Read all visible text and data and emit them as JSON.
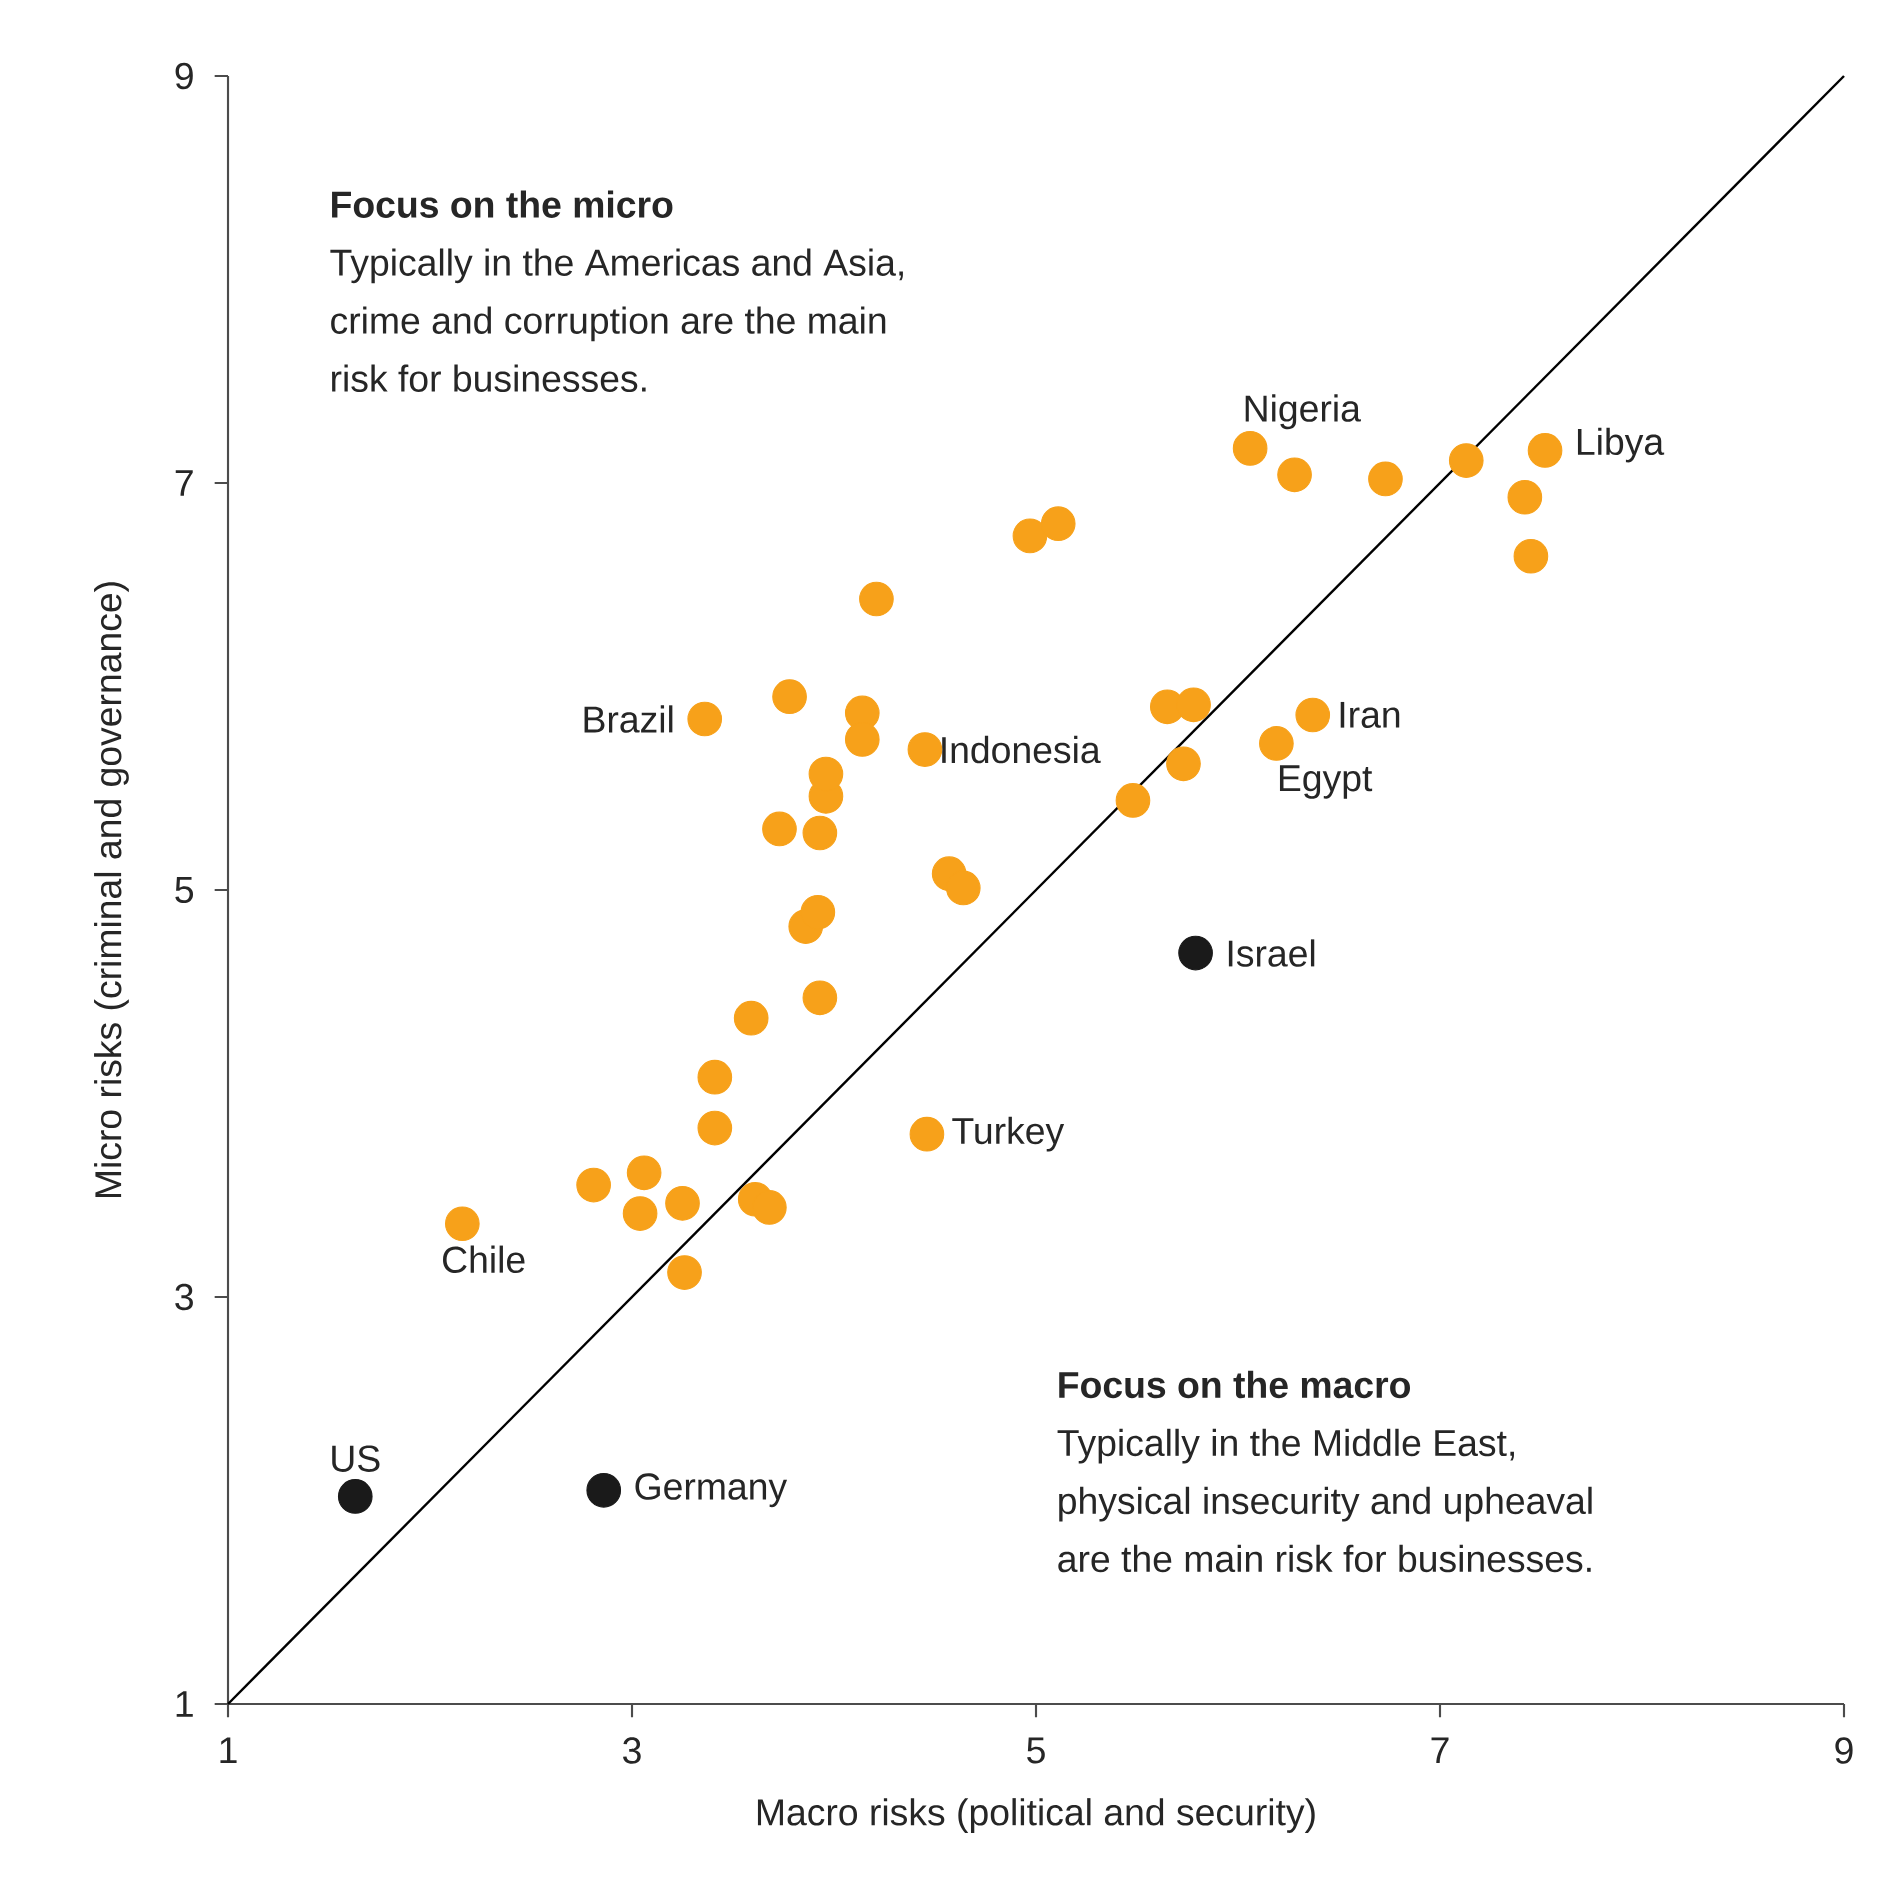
{
  "chart_data": {
    "type": "scatter",
    "xlabel": "Macro risks (political and security)",
    "ylabel": "Micro risks (criminal and governance)",
    "xlim": [
      1,
      9
    ],
    "ylim": [
      1,
      9
    ],
    "xticks": [
      1,
      3,
      5,
      7,
      9
    ],
    "yticks": [
      1,
      3,
      5,
      7,
      9
    ],
    "grid": false,
    "marker": "circle",
    "series": [
      {
        "color": "#f7a11a",
        "x": [
          2.16,
          2.81,
          3.06,
          3.04,
          3.25,
          3.26,
          3.61,
          3.68,
          3.41,
          3.41,
          3.59,
          3.93,
          3.86,
          3.92,
          3.93,
          3.73,
          3.96,
          3.96,
          3.36,
          3.78,
          4.14,
          4.14,
          4.21,
          4.45,
          4.46,
          4.57,
          4.64,
          4.97,
          5.11,
          5.48,
          5.65,
          5.78,
          5.73,
          6.19,
          6.37,
          6.06,
          6.28,
          6.73,
          7.13,
          7.52,
          7.42,
          7.45
        ],
        "values": [
          3.36,
          3.55,
          3.61,
          3.41,
          3.46,
          3.12,
          3.48,
          3.44,
          3.83,
          4.08,
          4.37,
          4.47,
          4.82,
          4.89,
          5.28,
          5.3,
          5.46,
          5.57,
          5.84,
          5.95,
          5.87,
          5.74,
          6.43,
          5.69,
          3.8,
          5.08,
          5.01,
          6.74,
          6.8,
          5.44,
          5.9,
          5.91,
          5.62,
          5.72,
          5.86,
          7.17,
          7.04,
          7.02,
          7.11,
          7.16,
          6.93,
          6.64
        ]
      },
      {
        "color": "#1a1a1a",
        "x": [
          1.63,
          2.86,
          5.79
        ],
        "values": [
          2.02,
          2.05,
          4.69
        ]
      },
      {
        "type": "line",
        "color": "#000000",
        "marker": "none",
        "line_style": "solid",
        "x": [
          1,
          9
        ],
        "values": [
          1,
          9
        ]
      }
    ],
    "annotations": [
      {
        "text": "Nigeria",
        "x": 6.06,
        "y": 7.17
      },
      {
        "text": "Libya",
        "x": 7.52,
        "y": 7.16
      },
      {
        "text": "Iran",
        "x": 6.37,
        "y": 5.86
      },
      {
        "text": "Egypt",
        "x": 6.19,
        "y": 5.72
      },
      {
        "text": "Indonesia",
        "x": 4.45,
        "y": 5.69
      },
      {
        "text": "Brazil",
        "x": 3.36,
        "y": 5.84
      },
      {
        "text": "Israel",
        "x": 5.79,
        "y": 4.69
      },
      {
        "text": "Turkey",
        "x": 4.46,
        "y": 3.8
      },
      {
        "text": "Chile",
        "x": 2.16,
        "y": 3.36
      },
      {
        "text": "US",
        "x": 1.63,
        "y": 2.02
      },
      {
        "text": "Germany",
        "x": 2.86,
        "y": 2.05
      },
      "Focus on the micro",
      "Typically in the Americas and Asia,",
      "crime and corruption are the main",
      "risk for businesses.",
      "Focus on the macro",
      "Typically in the Middle East,",
      "physical insecurity and upheaval",
      "are the main risk for businesses."
    ]
  }
}
